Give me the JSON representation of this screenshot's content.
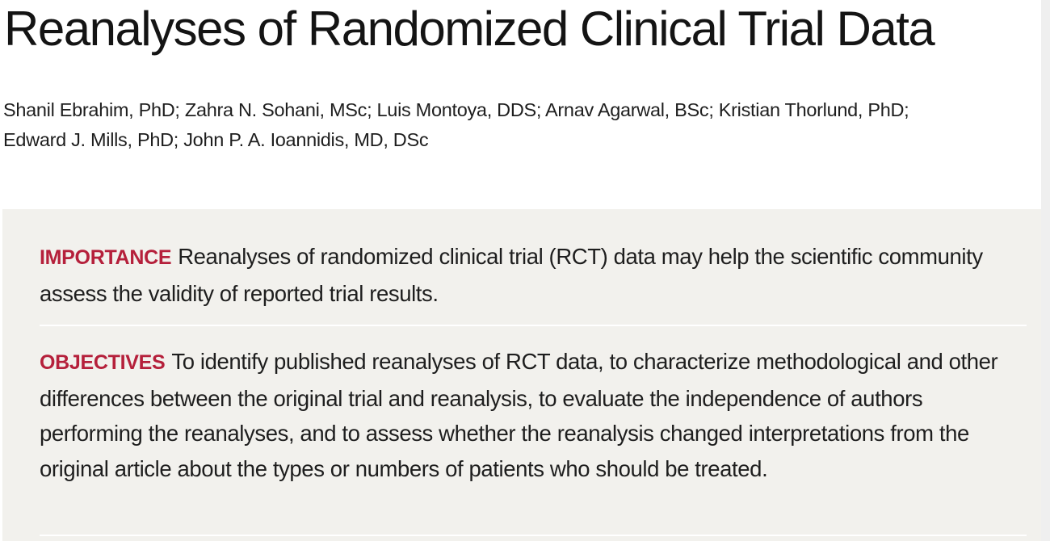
{
  "article": {
    "title": "Reanalyses of Randomized Clinical Trial Data",
    "authors_line1": "Shanil Ebrahim, PhD; Zahra N. Sohani, MSc; Luis Montoya, DDS; Arnav Agarwal, BSc; Kristian Thorlund, PhD;",
    "authors_line2": "Edward J. Mills, PhD; John P. A. Ioannidis, MD, DSc"
  },
  "abstract": {
    "importance": {
      "label": "IMPORTANCE",
      "text": "Reanalyses of randomized clinical trial (RCT) data may help the scientific community assess the validity of reported trial results."
    },
    "objectives": {
      "label": "OBJECTIVES",
      "text": "To identify published reanalyses of RCT data, to characterize methodological and other differences between the original trial and reanalysis, to evaluate the independence of authors performing the reanalyses, and to assess whether the reanalysis changed interpretations from the original article about the types or numbers of patients who should be treated."
    }
  },
  "colors": {
    "section_label": "#b5203b",
    "abstract_background": "#f2f1ed",
    "title_text": "#141414"
  }
}
